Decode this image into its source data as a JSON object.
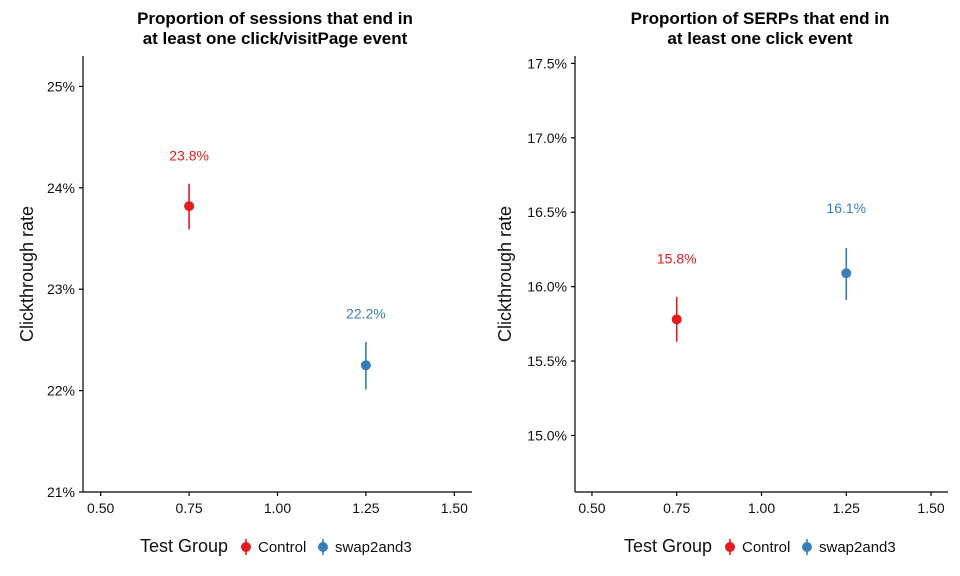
{
  "chart_data": [
    {
      "type": "scatter",
      "title_lines": [
        "Proportion of sessions that end in",
        "at least one click/visitPage event"
      ],
      "ylabel": "Clickthrough rate",
      "xlim": [
        0.45,
        1.55
      ],
      "ylim": [
        21,
        25.3
      ],
      "x_ticks": [
        0.5,
        0.75,
        1.0,
        1.25,
        1.5
      ],
      "x_tick_labels": [
        "0.50",
        "0.75",
        "1.00",
        "1.25",
        "1.50"
      ],
      "y_ticks": [
        21,
        22,
        23,
        24,
        25
      ],
      "y_tick_labels": [
        "21%",
        "22%",
        "23%",
        "24%",
        "25%"
      ],
      "series": [
        {
          "name": "Control",
          "x": 0.75,
          "y": 23.82,
          "lower": 23.59,
          "upper": 24.04,
          "label": "23.8%",
          "label_y": 24.32,
          "color": "#e41a1c"
        },
        {
          "name": "swap2and3",
          "x": 1.25,
          "y": 22.25,
          "lower": 22.01,
          "upper": 22.48,
          "label": "22.2%",
          "label_y": 22.76,
          "color": "#377eb8"
        }
      ]
    },
    {
      "type": "scatter",
      "title_lines": [
        "Proportion of SERPs that end in",
        "at least one click event"
      ],
      "ylabel": "Clickthrough rate",
      "xlim": [
        0.45,
        1.55
      ],
      "ylim": [
        14.62,
        17.55
      ],
      "x_ticks": [
        0.5,
        0.75,
        1.0,
        1.25,
        1.5
      ],
      "x_tick_labels": [
        "0.50",
        "0.75",
        "1.00",
        "1.25",
        "1.50"
      ],
      "y_ticks": [
        15.0,
        15.5,
        16.0,
        16.5,
        17.0,
        17.5
      ],
      "y_tick_labels": [
        "15.0%",
        "15.5%",
        "16.0%",
        "16.5%",
        "17.0%",
        "17.5%"
      ],
      "series": [
        {
          "name": "Control",
          "x": 0.75,
          "y": 15.78,
          "lower": 15.63,
          "upper": 15.93,
          "label": "15.8%",
          "label_y": 16.19,
          "color": "#e41a1c"
        },
        {
          "name": "swap2and3",
          "x": 1.25,
          "y": 16.09,
          "lower": 15.91,
          "upper": 16.26,
          "label": "16.1%",
          "label_y": 16.53,
          "color": "#377eb8"
        }
      ]
    }
  ],
  "legend": {
    "title": "Test Group",
    "items": [
      {
        "label": "Control",
        "color": "#e41a1c"
      },
      {
        "label": "swap2and3",
        "color": "#377eb8"
      }
    ]
  }
}
